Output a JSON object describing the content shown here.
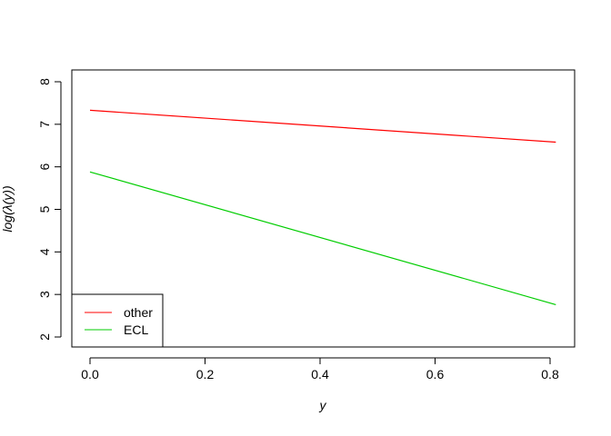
{
  "chart_data": {
    "type": "line",
    "title": "",
    "xlabel": "y",
    "ylabel": "log(λ(y))",
    "xlim": [
      0,
      0.81
    ],
    "ylim": [
      2,
      8
    ],
    "x_ticks": [
      0.0,
      0.2,
      0.4,
      0.6,
      0.8
    ],
    "x_tick_labels": [
      "0.0",
      "0.2",
      "0.4",
      "0.6",
      "0.8"
    ],
    "y_ticks": [
      2,
      3,
      4,
      5,
      6,
      7,
      8
    ],
    "y_tick_labels": [
      "2",
      "3",
      "4",
      "5",
      "6",
      "7",
      "8"
    ],
    "grid": false,
    "legend_position": "bottom-left",
    "series": [
      {
        "name": "other",
        "color": "#ff0000",
        "x": [
          0.0,
          0.81
        ],
        "y": [
          7.33,
          6.58
        ]
      },
      {
        "name": "ECL",
        "color": "#00cd00",
        "x": [
          0.0,
          0.81
        ],
        "y": [
          5.88,
          2.76
        ]
      }
    ]
  }
}
